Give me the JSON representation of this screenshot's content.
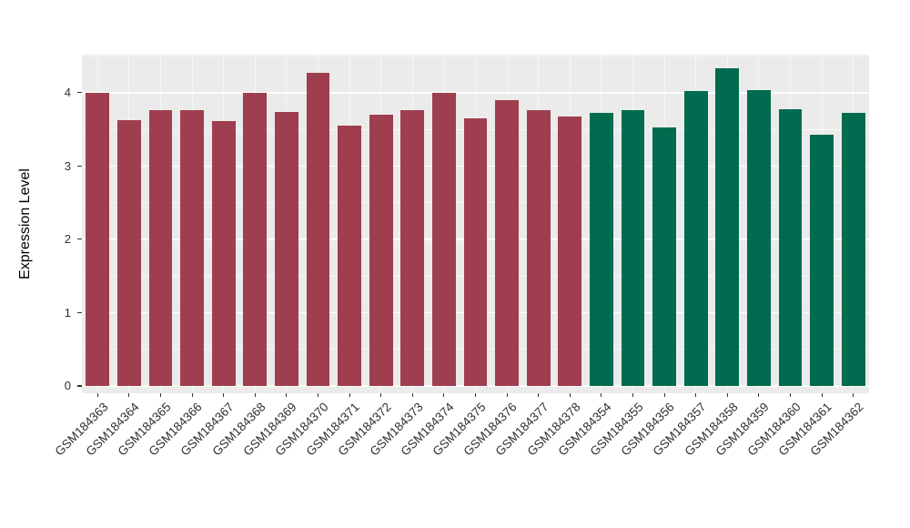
{
  "chart_data": {
    "type": "bar",
    "title": "",
    "ylabel": "Expression Level",
    "xlabel": "",
    "categories": [
      "GSM184363",
      "GSM184364",
      "GSM184365",
      "GSM184366",
      "GSM184367",
      "GSM184368",
      "GSM184369",
      "GSM184370",
      "GSM184371",
      "GSM184372",
      "GSM184373",
      "GSM184374",
      "GSM184375",
      "GSM184376",
      "GSM184377",
      "GSM184378",
      "GSM184354",
      "GSM184355",
      "GSM184356",
      "GSM184357",
      "GSM184358",
      "GSM184359",
      "GSM184360",
      "GSM184361",
      "GSM184362"
    ],
    "values": [
      4.0,
      3.62,
      3.76,
      3.76,
      3.61,
      4.0,
      3.74,
      4.27,
      3.55,
      3.7,
      3.76,
      4.0,
      3.65,
      3.9,
      3.76,
      3.68,
      3.72,
      3.76,
      3.53,
      4.02,
      4.33,
      4.04,
      3.78,
      3.43,
      3.72
    ],
    "groups": [
      {
        "name": "red-group",
        "color": "#9E3E4E",
        "count": 16
      },
      {
        "name": "green-group",
        "color": "#006B4E",
        "count": 9
      }
    ],
    "yticks": [
      0,
      1,
      2,
      3,
      4
    ],
    "yticks_minor": [
      0.5,
      1.5,
      2.5,
      3.5,
      4.5
    ],
    "ylim": [
      -0.1,
      4.52
    ],
    "grid": true,
    "legend": false,
    "panel_bg": "#EBEBEB",
    "grid_color": "#FFFFFF",
    "tick_text_color": "#303030",
    "bar_width_fraction": 0.75
  }
}
